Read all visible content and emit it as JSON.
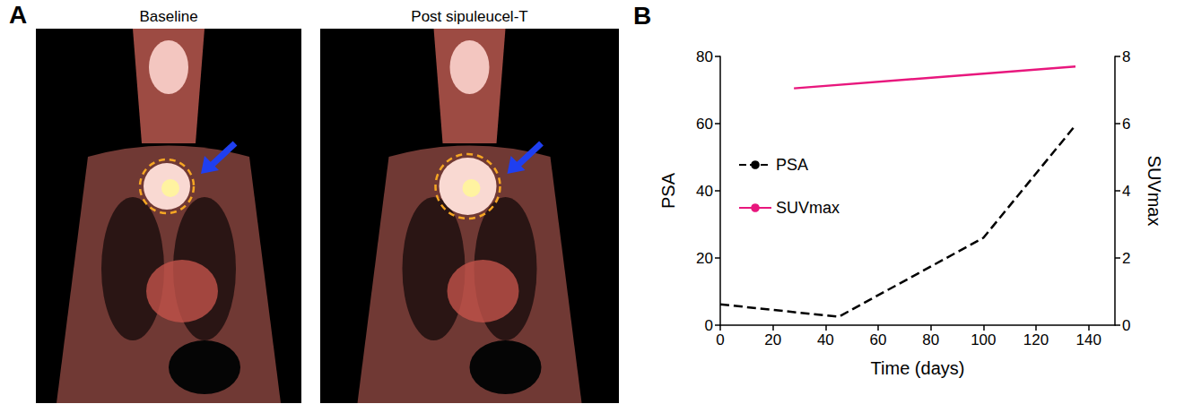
{
  "figure": {
    "panel_a": {
      "letter": "A",
      "images": [
        {
          "title": "Baseline"
        },
        {
          "title": "Post sipuleucel-T"
        }
      ]
    },
    "panel_b": {
      "letter": "B"
    }
  },
  "chart_data": {
    "type": "line",
    "xlabel": "Time (days)",
    "ylabel": "PSA",
    "y2label": "SUVmax",
    "xlim": [
      0,
      150
    ],
    "xticks": [
      0,
      20,
      40,
      60,
      80,
      100,
      120,
      140
    ],
    "ylim": [
      0,
      80
    ],
    "yticks": [
      0,
      20,
      40,
      60,
      80
    ],
    "y2lim": [
      0,
      8
    ],
    "y2ticks": [
      0,
      2,
      4,
      6,
      8
    ],
    "grid": false,
    "legend": "left",
    "series": [
      {
        "name": "PSA",
        "color": "#000000",
        "line_style": "dashed",
        "x": [
          0,
          45,
          100,
          135
        ],
        "values": [
          6.2,
          2.5,
          26,
          59.5
        ]
      },
      {
        "name": "SUVmax",
        "color": "#e8177d",
        "line_style": "solid",
        "axis": "y2",
        "x": [
          28,
          135
        ],
        "values": [
          7.05,
          7.7
        ]
      }
    ]
  }
}
